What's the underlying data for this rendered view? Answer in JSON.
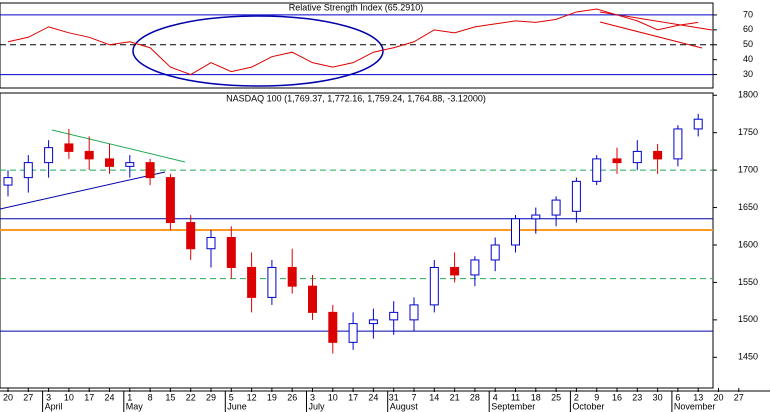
{
  "chart_data": [
    {
      "type": "line",
      "title": "Relative Strength Index (65.2910)",
      "categories": [
        "20",
        "27",
        "3",
        "10",
        "17",
        "24",
        "1",
        "8",
        "15",
        "22",
        "29",
        "5",
        "12",
        "19",
        "26",
        "3",
        "10",
        "17",
        "24",
        "31",
        "7",
        "14",
        "21",
        "28",
        "4",
        "11",
        "18",
        "25",
        "2",
        "9",
        "16",
        "23",
        "30",
        "6",
        "13",
        "20",
        "27"
      ],
      "series": [
        {
          "name": "RSI",
          "color": "#dd0000",
          "values": [
            52,
            55,
            62,
            58,
            55,
            50,
            52,
            48,
            35,
            30,
            38,
            32,
            35,
            42,
            45,
            38,
            35,
            38,
            45,
            48,
            52,
            60,
            58,
            62,
            64,
            66,
            65,
            67,
            72,
            74,
            70,
            66,
            60,
            63,
            65,
            null,
            null
          ]
        }
      ],
      "ylim": [
        21,
        78
      ],
      "yticks": [
        30,
        40,
        50,
        60,
        70
      ],
      "hlines": [
        {
          "value": 70,
          "color": "#0000cc",
          "dash": false
        },
        {
          "value": 50,
          "color": "#000000",
          "dash": true
        },
        {
          "value": 30,
          "color": "#0000cc",
          "dash": false
        }
      ]
    },
    {
      "type": "candlestick",
      "title": "NASDAQ 100 (1,769.37, 1,772.16, 1,759.24, 1,764.88, -3.12000)",
      "categories": [
        "20",
        "27",
        "3",
        "10",
        "17",
        "24",
        "1",
        "8",
        "15",
        "22",
        "29",
        "5",
        "12",
        "19",
        "26",
        "3",
        "10",
        "17",
        "24",
        "31",
        "7",
        "14",
        "21",
        "28",
        "4",
        "11",
        "18",
        "25",
        "2",
        "9",
        "16",
        "23",
        "30",
        "6",
        "13",
        "20",
        "27"
      ],
      "months": [
        {
          "label": "April",
          "index": 2
        },
        {
          "label": "May",
          "index": 6
        },
        {
          "label": "June",
          "index": 11
        },
        {
          "label": "July",
          "index": 15
        },
        {
          "label": "August",
          "index": 19
        },
        {
          "label": "September",
          "index": 24
        },
        {
          "label": "October",
          "index": 28
        },
        {
          "label": "November",
          "index": 33
        }
      ],
      "open": [
        1680,
        1690,
        1710,
        1735,
        1725,
        1715,
        1705,
        1710,
        1690,
        1630,
        1595,
        1610,
        1570,
        1530,
        1570,
        1545,
        1510,
        1470,
        1495,
        1500,
        1500,
        1520,
        1570,
        1560,
        1580,
        1600,
        1635,
        1640,
        1645,
        1685,
        1715,
        1710,
        1725,
        1715,
        1755,
        null,
        null
      ],
      "high": [
        1700,
        1720,
        1740,
        1755,
        1745,
        1735,
        1720,
        1715,
        1695,
        1640,
        1620,
        1625,
        1590,
        1580,
        1595,
        1560,
        1520,
        1510,
        1515,
        1525,
        1530,
        1580,
        1590,
        1585,
        1610,
        1640,
        1650,
        1665,
        1690,
        1720,
        1730,
        1740,
        1735,
        1760,
        1775,
        null,
        null
      ],
      "low": [
        1665,
        1670,
        1690,
        1715,
        1700,
        1695,
        1690,
        1680,
        1620,
        1580,
        1570,
        1555,
        1510,
        1520,
        1535,
        1500,
        1455,
        1460,
        1475,
        1480,
        1485,
        1510,
        1550,
        1545,
        1565,
        1590,
        1615,
        1625,
        1630,
        1680,
        1695,
        1700,
        1695,
        1705,
        1745,
        null,
        null
      ],
      "close": [
        1690,
        1710,
        1730,
        1725,
        1715,
        1705,
        1710,
        1690,
        1630,
        1595,
        1610,
        1570,
        1530,
        1570,
        1545,
        1510,
        1470,
        1495,
        1500,
        1510,
        1520,
        1570,
        1560,
        1580,
        1600,
        1635,
        1640,
        1660,
        1685,
        1715,
        1710,
        1725,
        1715,
        1755,
        1768,
        null,
        null
      ],
      "up_color": "#0000cc",
      "down_color": "#dd0000",
      "ylim": [
        1409,
        1803
      ],
      "yticks": [
        1450,
        1500,
        1550,
        1600,
        1650,
        1700,
        1750,
        1800
      ],
      "hlines": [
        {
          "value": 1700,
          "color": "#22aa55",
          "dash": true
        },
        {
          "value": 1635,
          "color": "#0000aa",
          "dash": false
        },
        {
          "value": 1620,
          "color": "#ff9922",
          "dash": false
        },
        {
          "value": 1555,
          "color": "#22aa55",
          "dash": true
        },
        {
          "value": 1485,
          "color": "#0000aa",
          "dash": false
        }
      ]
    }
  ]
}
